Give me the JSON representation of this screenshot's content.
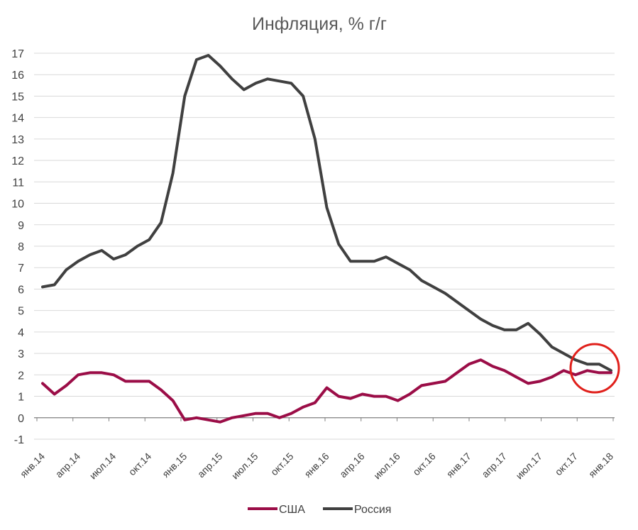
{
  "chart_data": {
    "type": "line",
    "title": "Инфляция, % г/г",
    "xlabel": "",
    "ylabel": "",
    "ylim": [
      -1,
      17
    ],
    "yticks": [
      -1,
      0,
      1,
      2,
      3,
      4,
      5,
      6,
      7,
      8,
      9,
      10,
      11,
      12,
      13,
      14,
      15,
      16,
      17
    ],
    "x_tick_labels": [
      "янв.14",
      "апр.14",
      "июл.14",
      "окт.14",
      "янв.15",
      "апр.15",
      "июл.15",
      "окт.15",
      "янв.16",
      "апр.16",
      "июл.16",
      "окт.16",
      "янв.17",
      "апр.17",
      "июл.17",
      "окт.17",
      "янв.18"
    ],
    "grid": true,
    "legend": "bottom",
    "series": [
      {
        "name": "США",
        "color": "#9b0d47",
        "values": [
          1.6,
          1.1,
          1.5,
          2.0,
          2.1,
          2.1,
          2.0,
          1.7,
          1.7,
          1.7,
          1.3,
          0.8,
          -0.1,
          0.0,
          -0.1,
          -0.2,
          0.0,
          0.1,
          0.2,
          0.2,
          0.0,
          0.2,
          0.5,
          0.7,
          1.4,
          1.0,
          0.9,
          1.1,
          1.0,
          1.0,
          0.8,
          1.1,
          1.5,
          1.6,
          1.7,
          2.1,
          2.5,
          2.7,
          2.4,
          2.2,
          1.9,
          1.6,
          1.7,
          1.9,
          2.2,
          2.0,
          2.2,
          2.1,
          2.1
        ]
      },
      {
        "name": "Россия",
        "color": "#404040",
        "values": [
          6.1,
          6.2,
          6.9,
          7.3,
          7.6,
          7.8,
          7.4,
          7.6,
          8.0,
          8.3,
          9.1,
          11.4,
          15.0,
          16.7,
          16.9,
          16.4,
          15.8,
          15.3,
          15.6,
          15.8,
          15.7,
          15.6,
          15.0,
          13.0,
          9.8,
          8.1,
          7.3,
          7.3,
          7.3,
          7.5,
          7.2,
          6.9,
          6.4,
          6.1,
          5.8,
          5.4,
          5.0,
          4.6,
          4.3,
          4.1,
          4.1,
          4.4,
          3.9,
          3.3,
          3.0,
          2.7,
          2.5,
          2.5,
          2.2
        ]
      }
    ]
  }
}
